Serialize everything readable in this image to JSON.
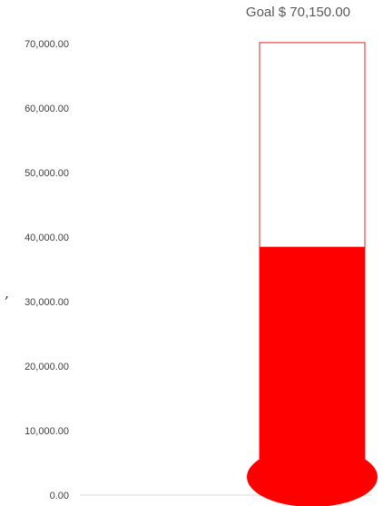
{
  "chart_data": {
    "type": "bar",
    "subtype": "thermometer",
    "goal_label": "Goal $ 70,150.00",
    "goal": 70150,
    "value": 38500,
    "ylim": [
      0,
      70000
    ],
    "y_ticks": [
      0,
      10000,
      20000,
      30000,
      40000,
      50000,
      60000,
      70000
    ],
    "y_tick_labels": [
      "0.00",
      "10,000.00",
      "20,000.00",
      "30,000.00",
      "40,000.00",
      "50,000.00",
      "60,000.00",
      "70,000.00"
    ],
    "grid": false,
    "colors": {
      "fill": "#ff0000",
      "outline": "#e8474a",
      "tick_text": "#404040",
      "goal_text": "#595959",
      "axis": "#d9d9d9"
    }
  },
  "stray_mark": ","
}
